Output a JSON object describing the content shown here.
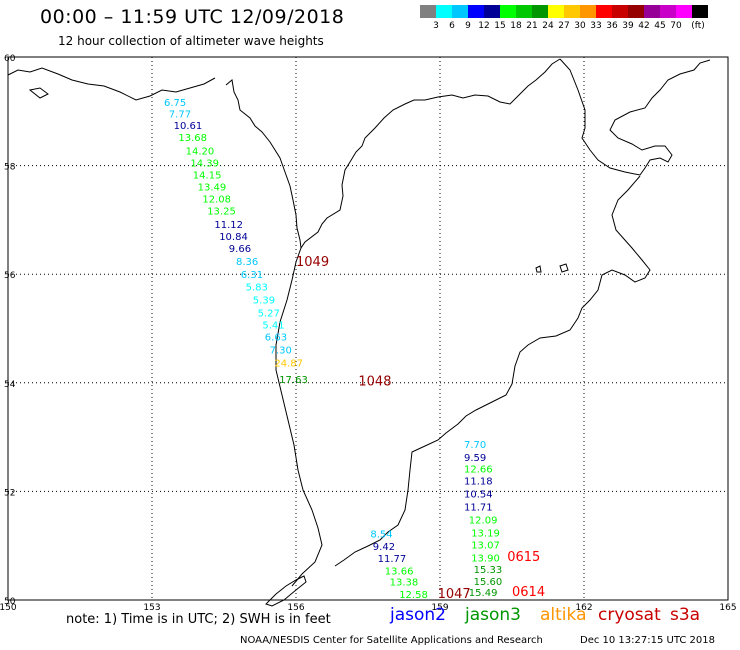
{
  "header": {
    "title": "00:00 – 11:59 UTC 12/09/2018",
    "subtitle": "12 hour collection of altimeter wave heights"
  },
  "scale": {
    "colors": [
      "#808080",
      "#00ffff",
      "#00c8ff",
      "#0000ff",
      "#000096",
      "#00ff00",
      "#00c800",
      "#009600",
      "#ffff00",
      "#ffc800",
      "#ff9600",
      "#ff0000",
      "#c80000",
      "#960000",
      "#960096",
      "#c800c8",
      "#ff00ff",
      "#000000"
    ],
    "labels": [
      "3",
      "6",
      "9",
      "12",
      "15",
      "18",
      "21",
      "24",
      "27",
      "30",
      "33",
      "36",
      "39",
      "42",
      "45",
      "70",
      "(ft)"
    ]
  },
  "axes": {
    "x_ticks": [
      "150",
      "153",
      "156",
      "159",
      "162",
      "165"
    ],
    "y_ticks": [
      "60",
      "58",
      "56",
      "54",
      "52",
      "50"
    ]
  },
  "map_data": {
    "lon_range": [
      150,
      165
    ],
    "lat_range": [
      50,
      60
    ],
    "tracks": [
      {
        "satellite": "jason2/jason3 pass (west)",
        "points": [
          {
            "label": "6.75",
            "lon": 153.25,
            "lat": 59.1,
            "color": "#00c8ff"
          },
          {
            "label": "7.77",
            "lon": 153.35,
            "lat": 58.89,
            "color": "#00c8ff"
          },
          {
            "label": "10.61",
            "lon": 153.45,
            "lat": 58.67,
            "color": "#000096"
          },
          {
            "label": "13.68",
            "lon": 153.55,
            "lat": 58.45,
            "color": "#00ff00"
          },
          {
            "label": "14.20",
            "lon": 153.7,
            "lat": 58.2,
            "color": "#00ff00"
          },
          {
            "label": "14.39",
            "lon": 153.8,
            "lat": 57.98,
            "color": "#00ff00"
          },
          {
            "label": "14.15",
            "lon": 153.85,
            "lat": 57.76,
            "color": "#00ff00"
          },
          {
            "label": "13.49",
            "lon": 153.95,
            "lat": 57.54,
            "color": "#00ff00"
          },
          {
            "label": "12.08",
            "lon": 154.05,
            "lat": 57.32,
            "color": "#00ff00"
          },
          {
            "label": "13.25",
            "lon": 154.15,
            "lat": 57.1,
            "color": "#00ff00"
          },
          {
            "label": "11.12",
            "lon": 154.3,
            "lat": 56.85,
            "color": "#000096"
          },
          {
            "label": "10.84",
            "lon": 154.4,
            "lat": 56.63,
            "color": "#000096"
          },
          {
            "label": "9.66",
            "lon": 154.6,
            "lat": 56.41,
            "color": "#000096"
          },
          {
            "label": "8.36",
            "lon": 154.75,
            "lat": 56.17,
            "color": "#00c8ff"
          },
          {
            "label": "6.31",
            "lon": 154.85,
            "lat": 55.93,
            "color": "#00c8ff"
          },
          {
            "label": "5.83",
            "lon": 154.95,
            "lat": 55.7,
            "color": "#00ffff"
          },
          {
            "label": "5.39",
            "lon": 155.1,
            "lat": 55.46,
            "color": "#00ffff"
          },
          {
            "label": "5.27",
            "lon": 155.2,
            "lat": 55.22,
            "color": "#00ffff"
          },
          {
            "label": "5.41",
            "lon": 155.3,
            "lat": 55.0,
            "color": "#00ffff"
          },
          {
            "label": "6.63",
            "lon": 155.35,
            "lat": 54.78,
            "color": "#00c8ff"
          },
          {
            "label": "7.30",
            "lon": 155.45,
            "lat": 54.54,
            "color": "#00c8ff"
          },
          {
            "label": "24.87",
            "lon": 155.55,
            "lat": 54.3,
            "color": "#ffc800"
          },
          {
            "label": "17.63",
            "lon": 155.65,
            "lat": 54.0,
            "color": "#009600"
          }
        ]
      },
      {
        "satellite": "jason2/jason3 pass (east)",
        "points": [
          {
            "label": "7.70",
            "lon": 159.5,
            "lat": 52.8,
            "color": "#00c8ff"
          },
          {
            "label": "9.59",
            "lon": 159.5,
            "lat": 52.56,
            "color": "#000096"
          },
          {
            "label": "12.66",
            "lon": 159.5,
            "lat": 52.35,
            "color": "#00ff00"
          },
          {
            "label": "11.18",
            "lon": 159.5,
            "lat": 52.13,
            "color": "#000096"
          },
          {
            "label": "10.54",
            "lon": 159.5,
            "lat": 51.89,
            "color": "#000096"
          },
          {
            "label": "11.71",
            "lon": 159.5,
            "lat": 51.65,
            "color": "#000096"
          },
          {
            "label": "12.09",
            "lon": 159.6,
            "lat": 51.41,
            "color": "#00ff00"
          },
          {
            "label": "13.19",
            "lon": 159.65,
            "lat": 51.17,
            "color": "#00ff00"
          },
          {
            "label": "13.07",
            "lon": 159.65,
            "lat": 50.95,
            "color": "#00ff00"
          },
          {
            "label": "13.90",
            "lon": 159.65,
            "lat": 50.71,
            "color": "#00ff00"
          },
          {
            "label": "15.33",
            "lon": 159.7,
            "lat": 50.5,
            "color": "#009600"
          },
          {
            "label": "15.60",
            "lon": 159.7,
            "lat": 50.28,
            "color": "#009600"
          },
          {
            "label": "15.49",
            "lon": 159.6,
            "lat": 50.07,
            "color": "#009600"
          }
        ]
      },
      {
        "satellite": "jason2/jason3 pass (south)",
        "points": [
          {
            "label": "8.54",
            "lon": 157.55,
            "lat": 51.15,
            "color": "#00c8ff"
          },
          {
            "label": "9.42",
            "lon": 157.6,
            "lat": 50.92,
            "color": "#000096"
          },
          {
            "label": "11.77",
            "lon": 157.7,
            "lat": 50.7,
            "color": "#000096"
          },
          {
            "label": "13.66",
            "lon": 157.85,
            "lat": 50.47,
            "color": "#00ff00"
          },
          {
            "label": "13.38",
            "lon": 157.95,
            "lat": 50.27,
            "color": "#00ff00"
          },
          {
            "label": "12.58",
            "lon": 158.15,
            "lat": 50.04,
            "color": "#00ff00"
          }
        ]
      },
      {
        "satellite": "cryosat/s3a times",
        "points": [
          {
            "label": "1049",
            "lon": 156.0,
            "lat": 56.15,
            "color": "#960000"
          },
          {
            "label": "1048",
            "lon": 157.3,
            "lat": 53.95,
            "color": "#960000"
          },
          {
            "label": "0615",
            "lon": 160.4,
            "lat": 50.72,
            "color": "#ff0000"
          },
          {
            "label": "0614",
            "lon": 160.5,
            "lat": 50.07,
            "color": "#ff0000"
          },
          {
            "label": "1047",
            "lon": 158.95,
            "lat": 50.04,
            "color": "#960000"
          }
        ]
      }
    ]
  },
  "note": "note: 1) Time is in UTC; 2) SWH is in feet",
  "legend": [
    {
      "label": "jason2",
      "color": "#0000ff"
    },
    {
      "label": "jason3",
      "color": "#009600"
    },
    {
      "label": "altika",
      "color": "#ff9600"
    },
    {
      "label": "cryosat",
      "color": "#c80000"
    },
    {
      "label": "s3a",
      "color": "#c80000"
    }
  ],
  "footer": {
    "left": "NOAA/NESDIS Center for Satellite Applications and Research",
    "right": "Dec 10 13:27:15 UTC 2018"
  }
}
